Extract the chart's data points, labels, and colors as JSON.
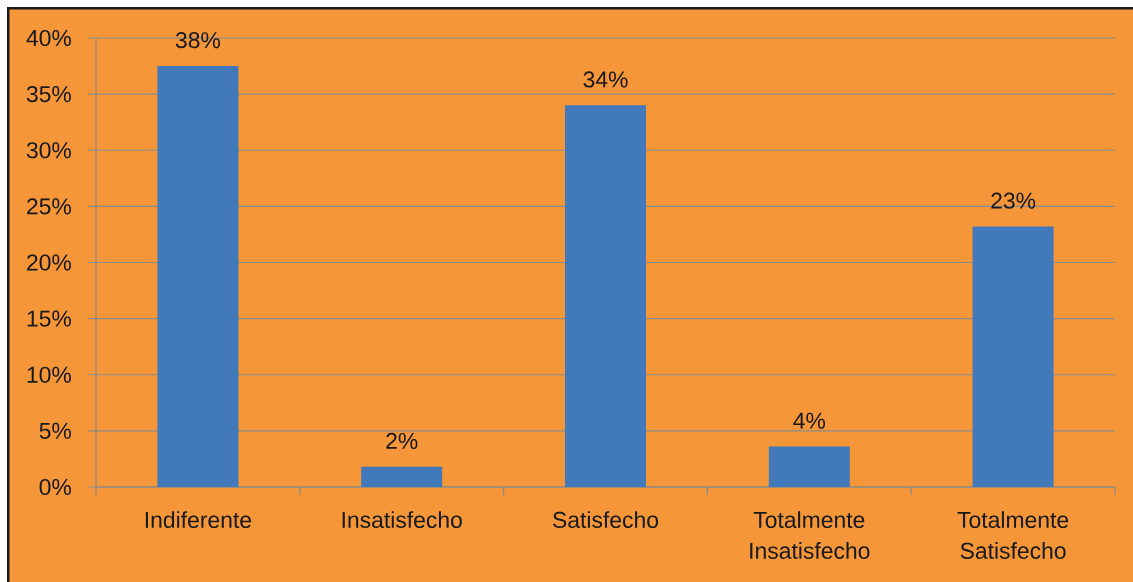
{
  "chart_data": {
    "type": "bar",
    "categories": [
      "Indiferente",
      "Insatisfecho",
      "Satisfecho",
      "Totalmente Insatisfecho",
      "Totalmente Satisfecho"
    ],
    "values": [
      37.5,
      1.8,
      34,
      3.6,
      23.2
    ],
    "value_labels": [
      "38%",
      "2%",
      "34%",
      "4%",
      "23%"
    ],
    "color": "#4179ba",
    "ylim": [
      0,
      40
    ],
    "yticks": [
      {
        "value": 0,
        "label": "0%"
      },
      {
        "value": 5,
        "label": "5%"
      },
      {
        "value": 10,
        "label": "10%"
      },
      {
        "value": 15,
        "label": "15%"
      },
      {
        "value": 20,
        "label": "20%"
      },
      {
        "value": 25,
        "label": "25%"
      },
      {
        "value": 30,
        "label": "30%"
      },
      {
        "value": 35,
        "label": "35%"
      },
      {
        "value": 40,
        "label": "40%"
      }
    ],
    "grid": "y"
  }
}
